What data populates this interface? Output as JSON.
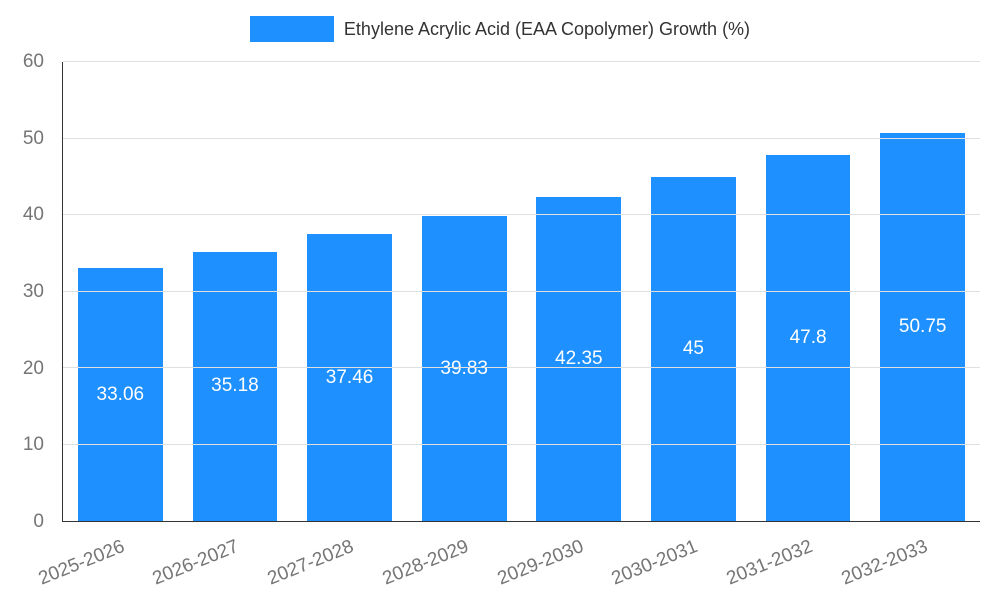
{
  "colors": {
    "bar": "#1e90ff",
    "grid": "#e0e0e0",
    "axis": "#333333",
    "tick_text": "#757575",
    "bar_label_text": "#ffffff",
    "title_text": "#333333"
  },
  "chart_data": {
    "type": "bar",
    "title": "Ethylene Acrylic Acid (EAA Copolymer) Growth (%)",
    "categories": [
      "2025-2026",
      "2026-2027",
      "2027-2028",
      "2028-2029",
      "2029-2030",
      "2030-2031",
      "2031-2032",
      "2032-2033"
    ],
    "values": [
      33.06,
      35.18,
      37.46,
      39.83,
      42.35,
      45,
      47.8,
      50.75
    ],
    "value_labels": [
      "33.06",
      "35.18",
      "37.46",
      "39.83",
      "42.35",
      "45",
      "47.8",
      "50.75"
    ],
    "xlabel": "",
    "ylabel": "",
    "ylim": [
      0,
      60
    ],
    "ytick_step": 10,
    "yticks": [
      "0",
      "10",
      "20",
      "30",
      "40",
      "50",
      "60"
    ],
    "grid": true,
    "legend_position": "top",
    "bar_label_position": "center-inside"
  }
}
